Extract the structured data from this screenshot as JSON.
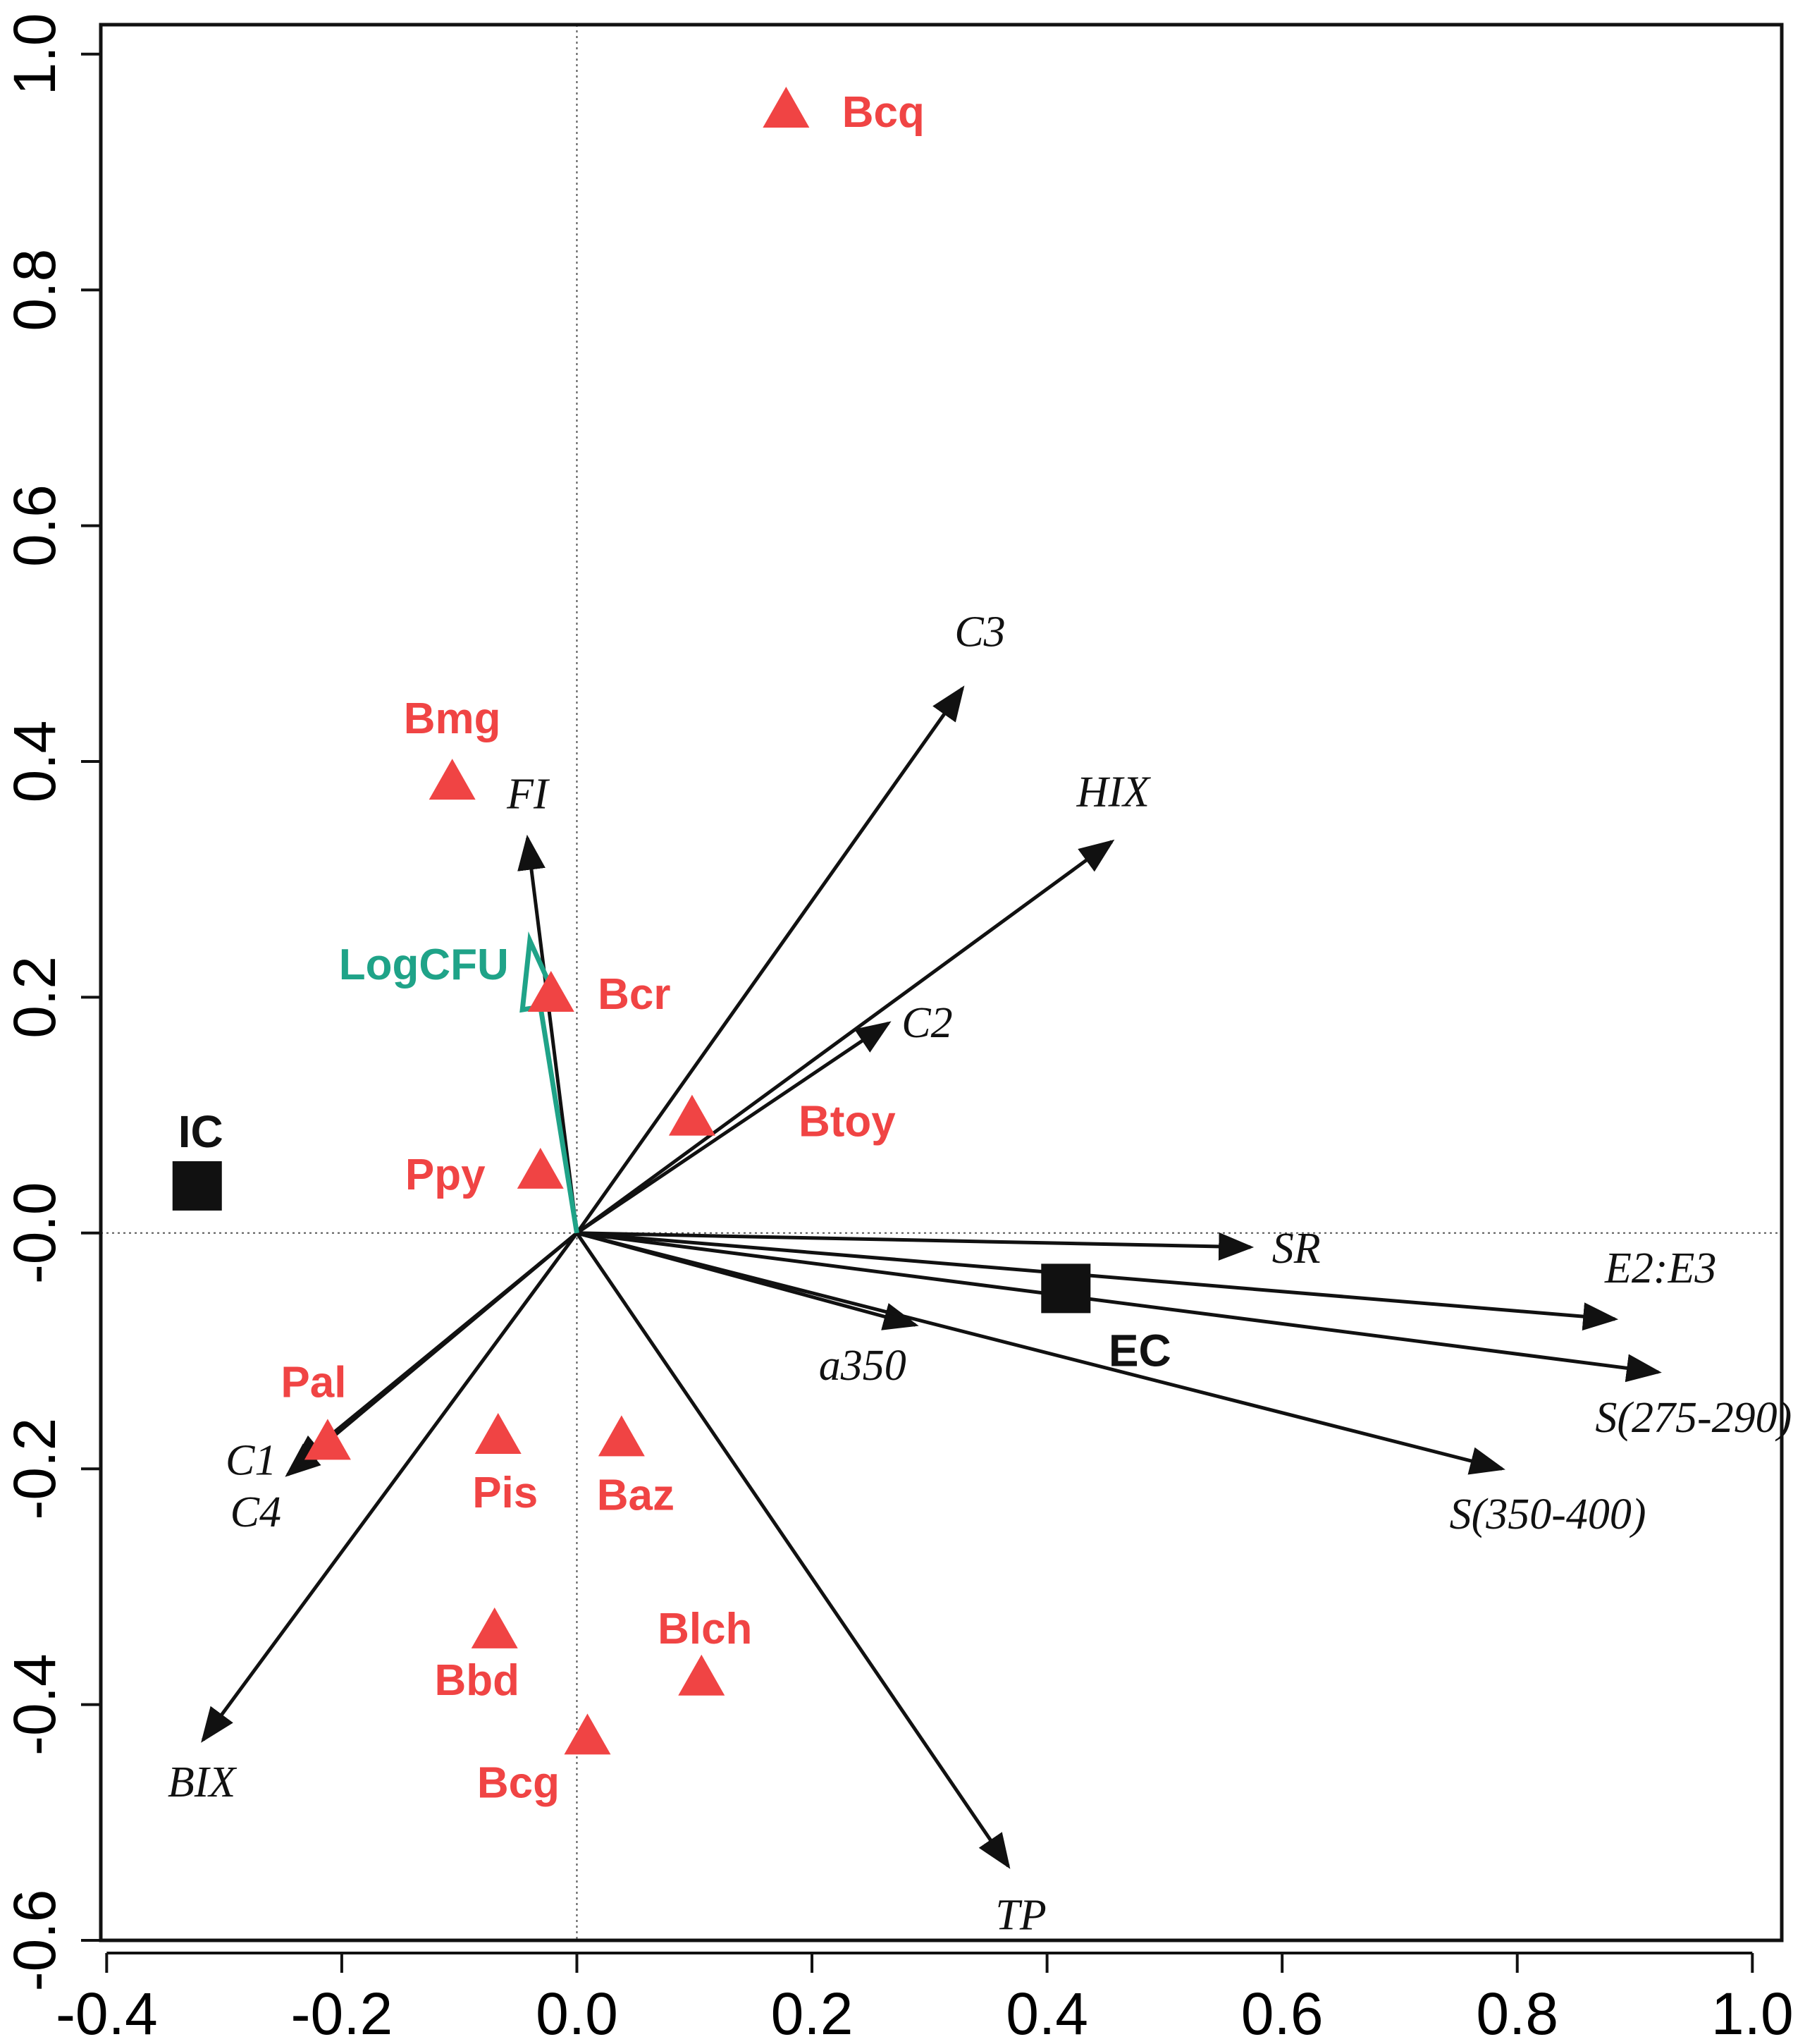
{
  "chart_data": {
    "type": "scatter",
    "title": "",
    "xlabel": "",
    "ylabel": "",
    "xlim": [
      -0.405,
      1.025
    ],
    "ylim": [
      -0.6,
      1.025
    ],
    "x_ticks": [
      -0.4,
      -0.2,
      0.0,
      0.2,
      0.4,
      0.6,
      0.8,
      1.0
    ],
    "x_tick_labels": [
      "-0.4",
      "-0.2",
      "0.0",
      "0.2",
      "0.4",
      "0.6",
      "0.8",
      "1.0"
    ],
    "y_ticks": [
      -0.6,
      -0.4,
      -0.2,
      0.0,
      0.2,
      0.4,
      0.6,
      0.8,
      1.0
    ],
    "y_tick_labels": [
      "-0.6",
      "-0.4",
      "-0.2",
      "-0.0",
      "0.2",
      "0.4",
      "0.6",
      "0.8",
      "1.0"
    ],
    "reference_lines": {
      "x": 0,
      "y": 0,
      "style": "dotted"
    },
    "colors": {
      "species": "#f04444",
      "groups": "#111111",
      "arrows": "#111111",
      "covariate": "#1fa388"
    },
    "species": [
      {
        "name": "Bcq",
        "x": 0.178,
        "y": 0.955
      },
      {
        "name": "Bmg",
        "x": -0.106,
        "y": 0.385
      },
      {
        "name": "Bcr",
        "x": -0.022,
        "y": 0.205
      },
      {
        "name": "Btoy",
        "x": 0.098,
        "y": 0.1
      },
      {
        "name": "Ppy",
        "x": -0.031,
        "y": 0.055
      },
      {
        "name": "Pal",
        "x": -0.212,
        "y": -0.175
      },
      {
        "name": "Pis",
        "x": -0.067,
        "y": -0.17
      },
      {
        "name": "Baz",
        "x": 0.038,
        "y": -0.172
      },
      {
        "name": "Bbd",
        "x": -0.07,
        "y": -0.335
      },
      {
        "name": "Blch",
        "x": 0.106,
        "y": -0.375
      },
      {
        "name": "Bcg",
        "x": 0.009,
        "y": -0.425
      }
    ],
    "groups": [
      {
        "name": "IC",
        "x": -0.323,
        "y": 0.04
      },
      {
        "name": "EC",
        "x": 0.416,
        "y": -0.047
      }
    ],
    "vectors": [
      {
        "name": "C3",
        "x": 0.328,
        "y": 0.462
      },
      {
        "name": "HIX",
        "x": 0.455,
        "y": 0.332
      },
      {
        "name": "C2",
        "x": 0.265,
        "y": 0.178
      },
      {
        "name": "FI",
        "x": -0.042,
        "y": 0.335
      },
      {
        "name": "SR",
        "x": 0.573,
        "y": -0.012
      },
      {
        "name": "E2:E3",
        "x": 0.883,
        "y": -0.073
      },
      {
        "name": "S(275-290)",
        "x": 0.92,
        "y": -0.118
      },
      {
        "name": "a350",
        "x": 0.288,
        "y": -0.078
      },
      {
        "name": "S(350-400)",
        "x": 0.787,
        "y": -0.2
      },
      {
        "name": "C1",
        "x": -0.246,
        "y": -0.205
      },
      {
        "name": "C4",
        "x": -0.242,
        "y": -0.198
      },
      {
        "name": "BIX",
        "x": -0.318,
        "y": -0.43
      },
      {
        "name": "TP",
        "x": 0.367,
        "y": -0.537
      }
    ],
    "covariate": {
      "name": "LogCFU",
      "x": -0.04,
      "y": 0.248
    }
  }
}
